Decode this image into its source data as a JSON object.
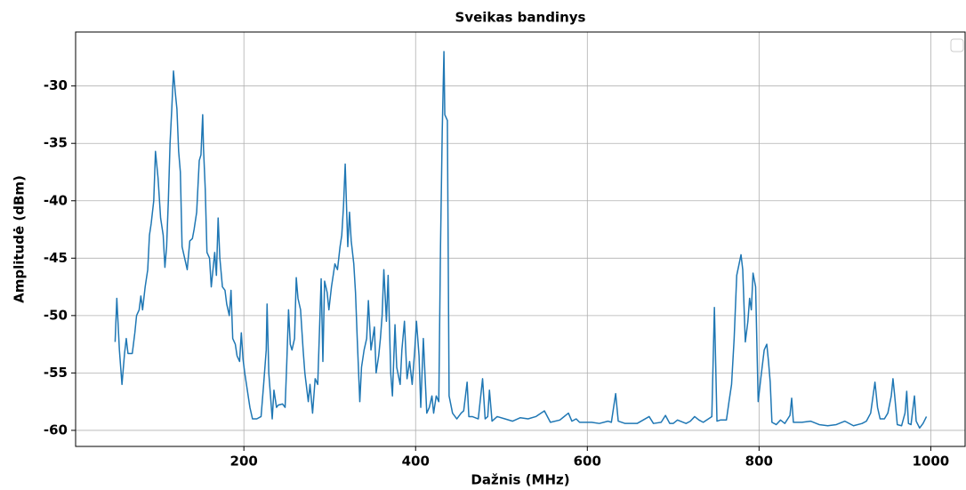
{
  "chart_data": {
    "type": "line",
    "title": "Sveikas bandinys",
    "xlabel": "Dažnis (MHz)",
    "ylabel": "Amplitudė (dBm)",
    "x": [
      50,
      52,
      55,
      58,
      61,
      63,
      65,
      70,
      73,
      75,
      78,
      80,
      82,
      85,
      88,
      90,
      92,
      95,
      97,
      100,
      103,
      106,
      108,
      110,
      112,
      114,
      116,
      118,
      120,
      122,
      124,
      126,
      128,
      131,
      134,
      137,
      140,
      142,
      145,
      148,
      150,
      152,
      153,
      155,
      157,
      160,
      162,
      164,
      166,
      168,
      170,
      172,
      175,
      178,
      180,
      183,
      185,
      187,
      190,
      192,
      195,
      197,
      199,
      201,
      204,
      207,
      210,
      215,
      220,
      223,
      226,
      227,
      229,
      231,
      233,
      235,
      238,
      240,
      245,
      248,
      250,
      252,
      254,
      256,
      259,
      261,
      263,
      266,
      269,
      271,
      275,
      277,
      280,
      283,
      286,
      290,
      292,
      294,
      297,
      299,
      302,
      306,
      309,
      312,
      314,
      316,
      318,
      321,
      323,
      325,
      328,
      330,
      332,
      335,
      337,
      340,
      343,
      345,
      348,
      352,
      354,
      357,
      359,
      361,
      363,
      366,
      368,
      371,
      373,
      376,
      378,
      382,
      384,
      387,
      390,
      393,
      396,
      399,
      401,
      404,
      406,
      409,
      413,
      416,
      419,
      421,
      424,
      427,
      429,
      431,
      433,
      434,
      437,
      439,
      443,
      448,
      453,
      456,
      460,
      462,
      466,
      473,
      478,
      481,
      484,
      486,
      489,
      495,
      504,
      513,
      522,
      531,
      540,
      550,
      557,
      568,
      578,
      582,
      587,
      591,
      605,
      614,
      624,
      628,
      633,
      636,
      644,
      658,
      672,
      677,
      686,
      691,
      696,
      700,
      705,
      715,
      720,
      725,
      730,
      735,
      745,
      748,
      751,
      755,
      762,
      765,
      768,
      771,
      774,
      779,
      781,
      784,
      787,
      789,
      791,
      793,
      796,
      799,
      802,
      806,
      809,
      811,
      813,
      815,
      820,
      825,
      830,
      836,
      838,
      840,
      850,
      860,
      870,
      880,
      890,
      900,
      910,
      920,
      925,
      930,
      935,
      938,
      941,
      946,
      950,
      954,
      956,
      958,
      961,
      966,
      970,
      972,
      974,
      977,
      981,
      983,
      987,
      991,
      995
    ],
    "series": [
      {
        "name": "Sveikas bandinys",
        "color": "#1f77b4",
        "values": [
          -52.3,
          -48.5,
          -53,
          -56,
          -53.3,
          -52,
          -53.3,
          -53.3,
          -51.5,
          -50,
          -49.5,
          -48.3,
          -49.5,
          -47.5,
          -46,
          -43,
          -42,
          -40,
          -35.7,
          -38,
          -41.5,
          -43,
          -45.8,
          -44,
          -40,
          -35,
          -32,
          -28.7,
          -30.5,
          -32,
          -35.7,
          -37.5,
          -44,
          -45,
          -46,
          -43.5,
          -43.3,
          -42.5,
          -41,
          -36.5,
          -36,
          -32.5,
          -35.5,
          -39,
          -44.5,
          -45,
          -47.5,
          -46,
          -44.5,
          -46.5,
          -41.5,
          -45,
          -47.5,
          -47.8,
          -49,
          -50,
          -47.8,
          -52,
          -52.5,
          -53.5,
          -54,
          -51.5,
          -53.8,
          -55,
          -56.5,
          -58,
          -59,
          -59,
          -58.8,
          -56,
          -53,
          -49,
          -55,
          -57,
          -59,
          -56.5,
          -58,
          -57.8,
          -57.7,
          -58,
          -54,
          -49.5,
          -52.5,
          -53,
          -52,
          -46.7,
          -48.5,
          -49.5,
          -53,
          -55,
          -57.5,
          -56,
          -58.5,
          -55.5,
          -56,
          -46.8,
          -54,
          -47,
          -48,
          -49.5,
          -47.5,
          -45.5,
          -46,
          -44,
          -43,
          -40.5,
          -36.8,
          -44,
          -41,
          -43.5,
          -45.5,
          -48,
          -52,
          -57.5,
          -54.5,
          -53,
          -52,
          -48.7,
          -53,
          -51,
          -55,
          -53.5,
          -52,
          -50,
          -46,
          -50.5,
          -46.5,
          -55,
          -57,
          -50.8,
          -54.5,
          -56,
          -53,
          -50.5,
          -55.5,
          -54,
          -56,
          -53,
          -50.5,
          -53.5,
          -58,
          -52,
          -58.5,
          -58,
          -57,
          -58.5,
          -57,
          -57.5,
          -44,
          -34,
          -27,
          -32.5,
          -33,
          -57,
          -58.5,
          -59,
          -58.5,
          -58.3,
          -55.8,
          -58.8,
          -58.8,
          -59,
          -55.5,
          -59,
          -58.8,
          -56.5,
          -59.2,
          -58.8,
          -59,
          -59.2,
          -58.9,
          -59,
          -58.8,
          -58.3,
          -59.3,
          -59.1,
          -58.5,
          -59.2,
          -59,
          -59.3,
          -59.3,
          -59.4,
          -59.2,
          -59.3,
          -56.8,
          -59.2,
          -59.4,
          -59.4,
          -58.8,
          -59.4,
          -59.3,
          -58.7,
          -59.4,
          -59.4,
          -59.1,
          -59.4,
          -59.2,
          -58.8,
          -59.1,
          -59.3,
          -58.8,
          -49.3,
          -59.2,
          -59.1,
          -59.1,
          -57.5,
          -56,
          -52,
          -46.5,
          -44.7,
          -46,
          -52.3,
          -50.5,
          -48.5,
          -49.5,
          -46.3,
          -47.5,
          -57.5,
          -55.5,
          -53,
          -52.5,
          -54,
          -55.8,
          -59.3,
          -59.5,
          -59.1,
          -59.4,
          -58.7,
          -57.2,
          -59.3,
          -59.3,
          -59.2,
          -59.5,
          -59.6,
          -59.5,
          -59.2,
          -59.6,
          -59.4,
          -59.2,
          -58.5,
          -55.8,
          -58,
          -59,
          -59,
          -58.5,
          -57,
          -55.5,
          -57,
          -59.5,
          -59.6,
          -58.5,
          -56.6,
          -59.4,
          -59.5,
          -57,
          -59.2,
          -59.8,
          -59.4,
          -58.8
        ]
      }
    ],
    "xlim": [
      4,
      1040
    ],
    "ylim": [
      -61.4,
      -25.3
    ],
    "xticks": [
      200,
      400,
      600,
      800,
      1000
    ],
    "yticks": [
      -60,
      -55,
      -50,
      -45,
      -40,
      -35,
      -30
    ],
    "grid": true
  }
}
